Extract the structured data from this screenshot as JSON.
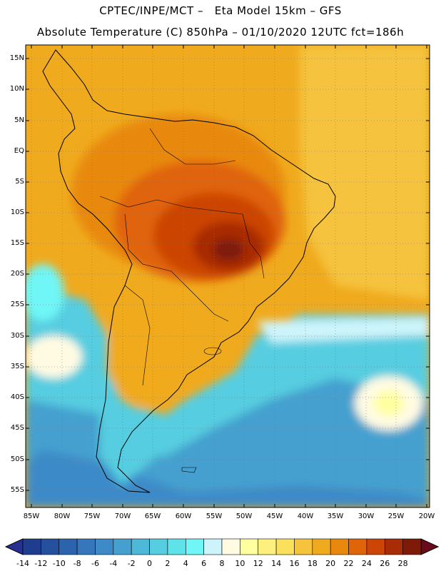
{
  "header": {
    "line1": "CPTEC/INPE/MCT –   Eta Model 15km – GFS",
    "line2": "Absolute Temperature (C) 850hPa – 01/10/2020 12UTC fct=186h"
  },
  "map": {
    "region": "South America",
    "variable": "Absolute Temperature (C) 850hPa",
    "lat_labels": [
      "15N",
      "10N",
      "5N",
      "EQ",
      "5S",
      "10S",
      "15S",
      "20S",
      "25S",
      "30S",
      "35S",
      "40S",
      "45S",
      "50S",
      "55S"
    ],
    "lon_labels": [
      "85W",
      "80W",
      "75W",
      "70W",
      "65W",
      "60W",
      "55W",
      "50W",
      "45W",
      "40W",
      "35W",
      "30W",
      "25W",
      "20W"
    ],
    "gridlines": "dotted"
  },
  "colorbar": {
    "labels": [
      "-14",
      "-12",
      "-10",
      "-8",
      "-6",
      "-4",
      "-2",
      "0",
      "2",
      "4",
      "6",
      "8",
      "10",
      "12",
      "14",
      "16",
      "18",
      "20",
      "22",
      "24",
      "26",
      "28"
    ],
    "colors": [
      "#1e3d8c",
      "#24509d",
      "#2c63ad",
      "#3576bc",
      "#3e8ac8",
      "#45a0cf",
      "#4eb8d8",
      "#56cde0",
      "#5ee3ea",
      "#70f6f6",
      "#cdf4fb",
      "#fffbe3",
      "#ffffa0",
      "#fdf07c",
      "#fbe05b",
      "#f5c33c",
      "#f0aa1e",
      "#e8890e",
      "#e06408",
      "#cc4406",
      "#a82c06",
      "#7e1a08"
    ],
    "under_color": "#283090",
    "over_color": "#6a0a1a"
  }
}
